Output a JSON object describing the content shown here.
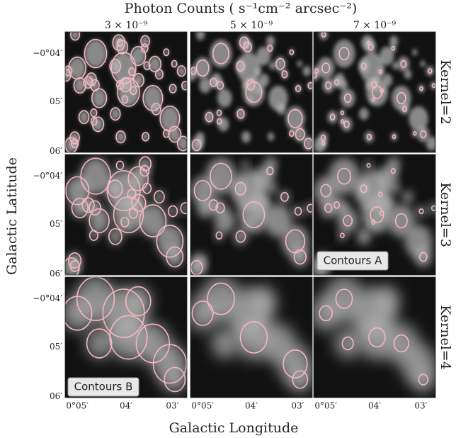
{
  "title": "Photon Counts ( s⁻¹cm⁻² arcsec⁻²)",
  "columns": [
    "3 × 10⁻⁹",
    "5 × 10⁻⁹",
    "7 × 10⁻⁹"
  ],
  "rows": [
    "Kernel=2",
    "Kernel=3",
    "Kernel=4"
  ],
  "x_axis": {
    "label": "Galactic Longitude",
    "ticks": [
      "0°05′",
      "04′",
      "03′"
    ]
  },
  "y_axis": {
    "label": "Galactic Latitude",
    "ticks": [
      "−0°04′",
      "05′",
      "06′"
    ]
  },
  "annotations": [
    "Contours A",
    "Contours B"
  ]
}
